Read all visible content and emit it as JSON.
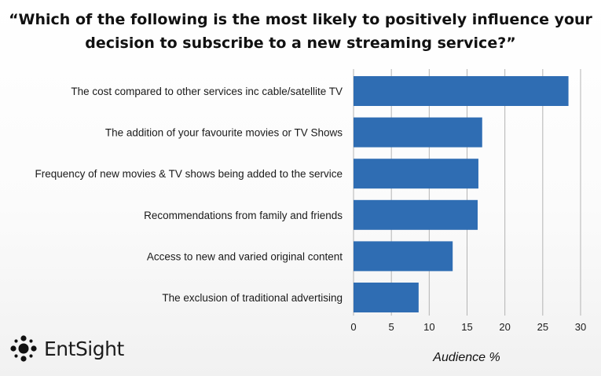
{
  "title": {
    "line1": "“Which of the following is the most likely to positively influence your",
    "line2": "decision to subscribe to a new streaming service?”"
  },
  "logo": {
    "text": "EntSight",
    "icon": "dot-cluster-icon"
  },
  "colors": {
    "bar": "#2f6db3",
    "grid": "#b3b3b3"
  },
  "chart_data": {
    "type": "bar",
    "orientation": "horizontal",
    "title": "“Which of the following is the most likely to positively influence your decision to subscribe to a new streaming service?”",
    "xlabel": "Audience %",
    "ylabel": "",
    "categories": [
      "The cost compared to other services inc cable/satellite TV",
      "The addition of your favourite movies or TV Shows",
      "Frequency of new movies & TV shows being added to the service",
      "Recommendations from family and friends",
      "Access to new and varied original content",
      "The exclusion of traditional advertising"
    ],
    "values": [
      28.4,
      17.0,
      16.5,
      16.4,
      13.1,
      8.6
    ],
    "xlim": [
      0,
      30
    ],
    "xticks": [
      0,
      5,
      10,
      15,
      20,
      25,
      30
    ],
    "grid": "vertical",
    "legend": "none"
  }
}
